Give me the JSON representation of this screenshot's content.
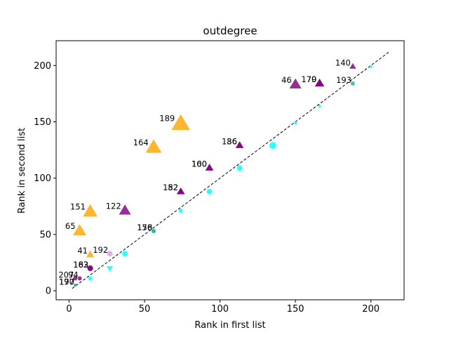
{
  "chart_data": {
    "type": "scatter",
    "title": "outdegree",
    "xlabel": "Rank in first list",
    "ylabel": "Rank in second list",
    "xlim": [
      -8.6,
      222
    ],
    "ylim": [
      -8,
      222
    ],
    "xticks": [
      0,
      50,
      100,
      150,
      200
    ],
    "yticks": [
      0,
      50,
      100,
      150,
      200
    ],
    "grid": false,
    "diagonal": {
      "x": [
        2,
        212
      ],
      "y": [
        2,
        212
      ],
      "style": "dashed",
      "color": "#000000"
    },
    "colors": {
      "orange": "#FFA500",
      "purple": "#800080",
      "cyan": "#00FFFF",
      "teal": "#20B2AA",
      "thistle": "#D8A0D8"
    },
    "points": [
      {
        "x": 74,
        "y": 148,
        "marker": "triangle-up",
        "color": "orange",
        "size": 14,
        "label": "189"
      },
      {
        "x": 56,
        "y": 127,
        "marker": "triangle-up",
        "color": "orange",
        "size": 12,
        "label": "164"
      },
      {
        "x": 14,
        "y": 70,
        "marker": "triangle-up",
        "color": "orange",
        "size": 11,
        "label": "151"
      },
      {
        "x": 7,
        "y": 53,
        "marker": "triangle-up",
        "color": "orange",
        "size": 10,
        "label": "65"
      },
      {
        "x": 14,
        "y": 32,
        "marker": "triangle-up",
        "color": "orange",
        "size": 6,
        "label": "41"
      },
      {
        "x": 37,
        "y": 71,
        "marker": "triangle-up",
        "color": "purple",
        "size": 9,
        "label": "122"
      },
      {
        "x": 150,
        "y": 183,
        "marker": "triangle-up",
        "color": "purple",
        "size": 9,
        "label": "46"
      },
      {
        "x": 166,
        "y": 184,
        "marker": "triangle-up",
        "color": "purple",
        "size": 7,
        "label": "70"
      },
      {
        "x": 166,
        "y": 184,
        "marker": "triangle-up",
        "color": "purple",
        "size": 7,
        "label": "179"
      },
      {
        "x": 188,
        "y": 199,
        "marker": "triangle-up",
        "color": "purple",
        "size": 5,
        "label": "140"
      },
      {
        "x": 113,
        "y": 129,
        "marker": "triangle-up",
        "color": "purple",
        "size": 6,
        "label": "36"
      },
      {
        "x": 113,
        "y": 129,
        "marker": "triangle-up",
        "color": "purple",
        "size": 6,
        "label": "186"
      },
      {
        "x": 93,
        "y": 109,
        "marker": "triangle-up",
        "color": "purple",
        "size": 6,
        "label": "100"
      },
      {
        "x": 93,
        "y": 109,
        "marker": "triangle-up",
        "color": "purple",
        "size": 6,
        "label": "160"
      },
      {
        "x": 74,
        "y": 88,
        "marker": "triangle-up",
        "color": "purple",
        "size": 6,
        "label": "182"
      },
      {
        "x": 74,
        "y": 88,
        "marker": "triangle-up",
        "color": "purple",
        "size": 6,
        "label": "52"
      },
      {
        "x": 14,
        "y": 20,
        "marker": "circle",
        "color": "purple",
        "size": 4,
        "label": "183"
      },
      {
        "x": 14,
        "y": 20,
        "marker": "circle",
        "color": "purple",
        "size": 4,
        "label": "162"
      },
      {
        "x": 7,
        "y": 11,
        "marker": "circle",
        "color": "purple",
        "size": 3,
        "label": "94"
      },
      {
        "x": 4,
        "y": 11,
        "marker": "circle",
        "color": "purple",
        "size": 3,
        "label": "207"
      },
      {
        "x": 27,
        "y": 33,
        "marker": "circle",
        "color": "thistle",
        "size": 4,
        "label": "192"
      },
      {
        "x": 4,
        "y": 5,
        "marker": "circle",
        "color": "teal",
        "size": 2,
        "label": "170"
      },
      {
        "x": 4,
        "y": 5,
        "marker": "circle",
        "color": "teal",
        "size": 2,
        "label": "197"
      },
      {
        "x": 56,
        "y": 53,
        "marker": "circle",
        "color": "teal",
        "size": 3,
        "label": "158"
      },
      {
        "x": 56,
        "y": 53,
        "marker": "circle",
        "color": "teal",
        "size": 3,
        "label": "176"
      },
      {
        "x": 188,
        "y": 184,
        "marker": "circle",
        "color": "teal",
        "size": 3,
        "label": "193"
      },
      {
        "x": 27,
        "y": 20,
        "marker": "triangle-down",
        "color": "cyan",
        "size": 5,
        "label": ""
      },
      {
        "x": 37,
        "y": 33,
        "marker": "circle",
        "color": "cyan",
        "size": 4,
        "label": ""
      },
      {
        "x": 14,
        "y": 11,
        "marker": "circle",
        "color": "cyan",
        "size": 3,
        "label": ""
      },
      {
        "x": 74,
        "y": 71,
        "marker": "circle",
        "color": "cyan",
        "size": 3,
        "label": ""
      },
      {
        "x": 93,
        "y": 88,
        "marker": "circle",
        "color": "cyan",
        "size": 4,
        "label": ""
      },
      {
        "x": 113,
        "y": 109,
        "marker": "circle",
        "color": "cyan",
        "size": 4,
        "label": ""
      },
      {
        "x": 135,
        "y": 129,
        "marker": "circle",
        "color": "cyan",
        "size": 5,
        "label": ""
      },
      {
        "x": 150,
        "y": 149,
        "marker": "circle",
        "color": "cyan",
        "size": 2,
        "label": ""
      },
      {
        "x": 166,
        "y": 164,
        "marker": "circle",
        "color": "cyan",
        "size": 2,
        "label": ""
      },
      {
        "x": 200,
        "y": 199,
        "marker": "circle",
        "color": "cyan",
        "size": 2,
        "label": ""
      }
    ]
  }
}
